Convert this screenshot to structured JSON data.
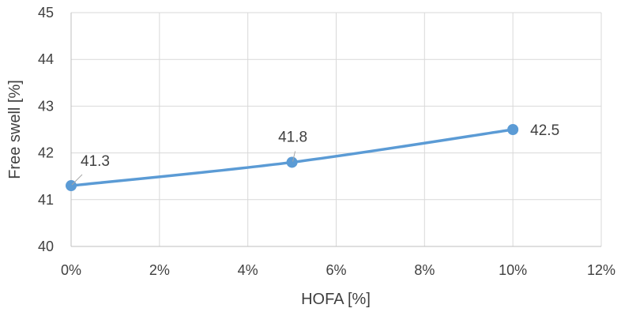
{
  "chart_data": {
    "type": "line",
    "title": "",
    "xlabel": "HOFA [%]",
    "ylabel": "Free swell [%]",
    "xlim": [
      0,
      0.12
    ],
    "ylim": [
      40,
      45
    ],
    "x_ticks": [
      {
        "value": 0,
        "label": "0%"
      },
      {
        "value": 0.02,
        "label": "2%"
      },
      {
        "value": 0.04,
        "label": "4%"
      },
      {
        "value": 0.06,
        "label": "6%"
      },
      {
        "value": 0.08,
        "label": "8%"
      },
      {
        "value": 0.1,
        "label": "10%"
      },
      {
        "value": 0.12,
        "label": "12%"
      }
    ],
    "y_ticks": [
      {
        "value": 40,
        "label": "40"
      },
      {
        "value": 41,
        "label": "41"
      },
      {
        "value": 42,
        "label": "42"
      },
      {
        "value": 43,
        "label": "43"
      },
      {
        "value": 44,
        "label": "44"
      },
      {
        "value": 45,
        "label": "45"
      }
    ],
    "grid": true,
    "legend": "none",
    "series": [
      {
        "color": "#5b9bd5",
        "smooth": true,
        "points": [
          {
            "x": 0,
            "y": 41.3,
            "label": "41.3"
          },
          {
            "x": 0.05,
            "y": 41.8,
            "label": "41.8"
          },
          {
            "x": 0.1,
            "y": 42.5,
            "label": "42.5"
          }
        ]
      }
    ]
  }
}
